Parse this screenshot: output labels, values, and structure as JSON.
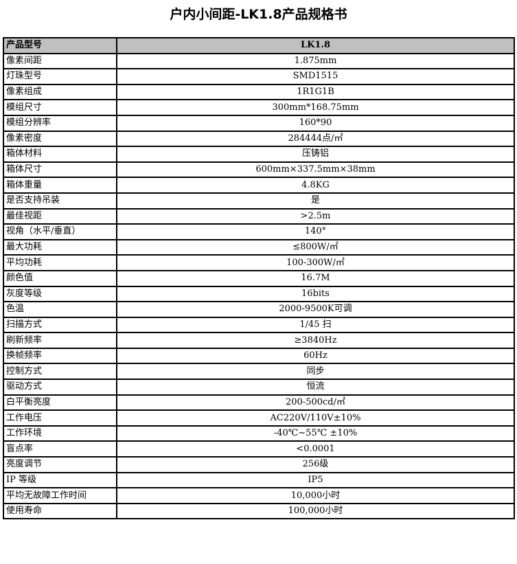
{
  "title": "户内小间距-LK1.8产品规格书",
  "header": {
    "label": "产品型号",
    "value": "LK1.8"
  },
  "rows": [
    {
      "label": "像素间距",
      "value": "1.875mm"
    },
    {
      "label": "灯珠型号",
      "value": "SMD1515"
    },
    {
      "label": "像素组成",
      "value": "1R1G1B"
    },
    {
      "label": "模组尺寸",
      "value": "300mm*168.75mm"
    },
    {
      "label": "模组分辨率",
      "value": "160*90"
    },
    {
      "label": "像素密度",
      "value": "284444点/㎡"
    },
    {
      "label": "箱体材料",
      "value": "压铸铝"
    },
    {
      "label": "箱体尺寸",
      "value": "600mm×337.5mm×38mm"
    },
    {
      "label": "箱体重量",
      "value": "4.8KG"
    },
    {
      "label": "是否支持吊装",
      "value": "是"
    },
    {
      "label": "最佳视距",
      "value": ">2.5m"
    },
    {
      "label": "视角（水平/垂直）",
      "value": "140°"
    },
    {
      "label": "最大功耗",
      "value": "≤800W/㎡"
    },
    {
      "label": "平均功耗",
      "value": "100-300W/㎡"
    },
    {
      "label": "颜色值",
      "value": "16.7M"
    },
    {
      "label": "灰度等级",
      "value": "16bits"
    },
    {
      "label": "色温",
      "value": "2000-9500K可调"
    },
    {
      "label": "扫描方式",
      "value": "1/45 扫"
    },
    {
      "label": "刷新频率",
      "value": "≥3840Hz"
    },
    {
      "label": "换帧频率",
      "value": "60Hz"
    },
    {
      "label": "控制方式",
      "value": "同步"
    },
    {
      "label": "驱动方式",
      "value": "恒流"
    },
    {
      "label": "白平衡亮度",
      "value": "200-500cd/㎡"
    },
    {
      "label": "工作电压",
      "value": "AC220V/110V±10%"
    },
    {
      "label": "工作环境",
      "value": "-40℃~55℃  ±10%"
    },
    {
      "label": "盲点率",
      "value": "<0.0001"
    },
    {
      "label": "亮度调节",
      "value": "256级"
    },
    {
      "label": "IP 等级",
      "value": "IP5"
    },
    {
      "label": "平均无故障工作时间",
      "value": "10,000小时"
    },
    {
      "label": "使用寿命",
      "value": "100,000小时"
    }
  ]
}
